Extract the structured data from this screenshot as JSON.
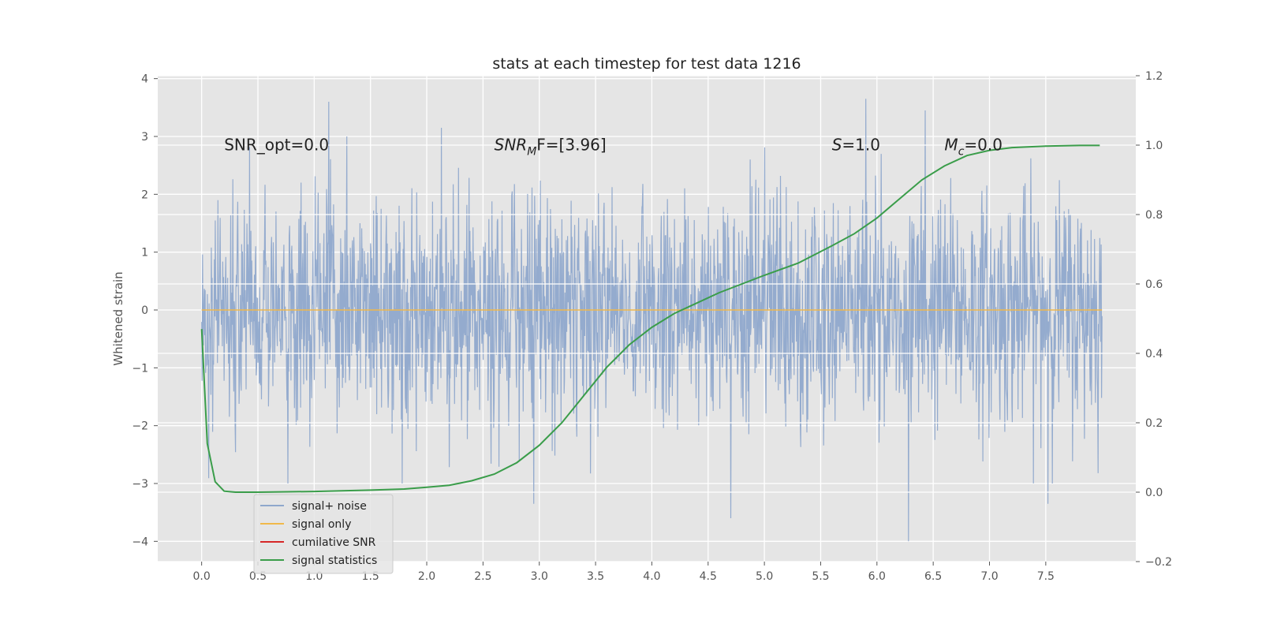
{
  "chart_data": {
    "type": "line",
    "title": "stats at each timestep for test data 1216",
    "ylabel": "Whitened strain",
    "xlim": [
      -0.39,
      8.3
    ],
    "ylim": [
      -4.35,
      4.05
    ],
    "y2lim": [
      -0.2,
      1.2
    ],
    "grid": true,
    "x_ticks": [
      "0.0",
      "0.5",
      "1.0",
      "1.5",
      "2.0",
      "2.5",
      "3.0",
      "3.5",
      "4.0",
      "4.5",
      "5.0",
      "5.5",
      "6.0",
      "6.5",
      "7.0",
      "7.5"
    ],
    "y_ticks": [
      "4",
      "3",
      "2",
      "1",
      "0",
      "−1",
      "−2",
      "−3",
      "−4"
    ],
    "y2_ticks": [
      "1.2",
      "1.0",
      "0.8",
      "0.6",
      "0.4",
      "0.2",
      "0.0",
      "−0.2"
    ],
    "annotations": [
      {
        "text": "SNR_opt=0.0",
        "x": 0.2,
        "y": 2.87
      },
      {
        "text": "SNR",
        "sub": "M",
        "rest": "F=[3.96]",
        "x": 2.6,
        "y": 2.87
      },
      {
        "text": "S",
        "rest": "=1.0",
        "x": 5.6,
        "y": 2.87
      },
      {
        "text": "M",
        "sub": "c",
        "rest": "=0.0",
        "x": 6.6,
        "y": 2.87
      }
    ],
    "legend": {
      "placement": "lower-left",
      "entries": [
        {
          "label": "signal+ noise",
          "color": "#8fa8cc"
        },
        {
          "label": "signal only",
          "color": "#f0b84a"
        },
        {
          "label": "cumilative SNR",
          "color": "#d62728"
        },
        {
          "label": "signal statistics",
          "color": "#3a9d4a"
        }
      ]
    },
    "series": [
      {
        "name": "signal+ noise",
        "color": "#8fa8cc",
        "axis": "left",
        "x_range": [
          0.0,
          8.0
        ],
        "samples": 2048,
        "envelope": [
          -2.4,
          2.4
        ],
        "peaks": [
          {
            "x": 1.13,
            "y": 3.6
          },
          {
            "x": 2.13,
            "y": 3.15
          },
          {
            "x": 5.9,
            "y": 3.65
          },
          {
            "x": 6.43,
            "y": 3.45
          },
          {
            "x": 4.7,
            "y": -3.6
          },
          {
            "x": 6.28,
            "y": -4.0
          },
          {
            "x": 7.52,
            "y": -3.35
          },
          {
            "x": 2.95,
            "y": -3.35
          }
        ]
      },
      {
        "name": "signal only",
        "color": "#f0b84a",
        "axis": "left",
        "x": [
          0.0,
          8.0
        ],
        "y": [
          0.0,
          0.0
        ]
      },
      {
        "name": "signal statistics",
        "color": "#3a9d4a",
        "axis": "right",
        "x": [
          0.0,
          0.05,
          0.12,
          0.2,
          0.3,
          0.5,
          1.0,
          1.5,
          1.8,
          2.0,
          2.2,
          2.4,
          2.6,
          2.8,
          3.0,
          3.2,
          3.4,
          3.6,
          3.8,
          4.0,
          4.2,
          4.4,
          4.6,
          4.8,
          5.0,
          5.3,
          5.6,
          5.8,
          6.0,
          6.2,
          6.4,
          6.6,
          6.8,
          7.0,
          7.2,
          7.5,
          7.8,
          7.98
        ],
        "y": [
          0.47,
          0.14,
          0.03,
          0.003,
          0.0,
          0.0,
          0.002,
          0.006,
          0.009,
          0.014,
          0.02,
          0.033,
          0.052,
          0.085,
          0.135,
          0.2,
          0.28,
          0.36,
          0.425,
          0.475,
          0.515,
          0.545,
          0.575,
          0.6,
          0.625,
          0.66,
          0.71,
          0.745,
          0.79,
          0.845,
          0.9,
          0.94,
          0.97,
          0.985,
          0.993,
          0.997,
          0.999,
          0.999
        ]
      }
    ]
  }
}
